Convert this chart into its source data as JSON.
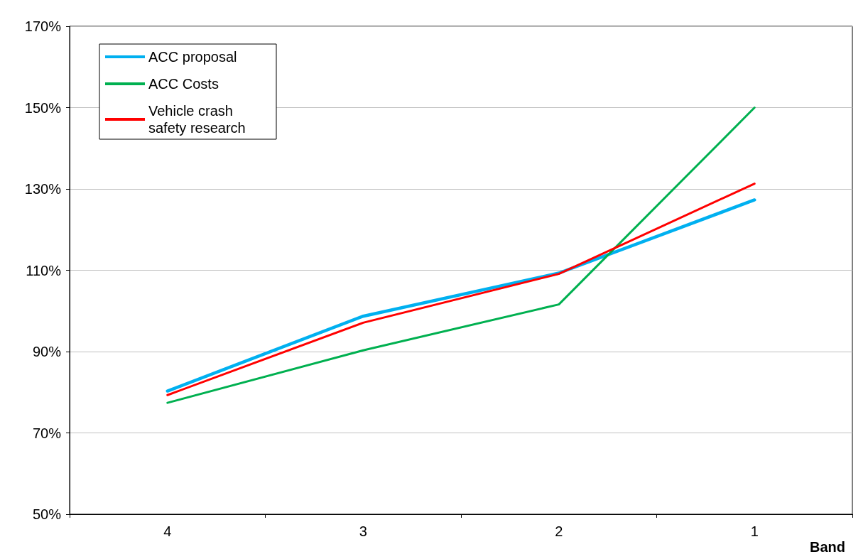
{
  "chart_data": {
    "type": "line",
    "xlabel": "Band",
    "categories": [
      "4",
      "3",
      "2",
      "1"
    ],
    "series": [
      {
        "name": "ACC proposal",
        "color": "#00b0f0",
        "values": [
          80.3,
          98.7,
          109.3,
          127.3
        ]
      },
      {
        "name": "ACC Costs",
        "color": "#00b050",
        "values": [
          77.4,
          90.3,
          101.6,
          150
        ]
      },
      {
        "name": "Vehicle crash safety research",
        "color": "#ff0000",
        "values": [
          79.3,
          97.1,
          109.1,
          131.3
        ]
      }
    ],
    "ylim": [
      50,
      170
    ],
    "yticks": [
      {
        "value": 50,
        "label": "50%"
      },
      {
        "value": 70,
        "label": "70%"
      },
      {
        "value": 90,
        "label": "90%"
      },
      {
        "value": 110,
        "label": "110%"
      },
      {
        "value": 130,
        "label": "130%"
      },
      {
        "value": 150,
        "label": "150%"
      },
      {
        "value": 170,
        "label": "170%"
      }
    ],
    "grid": "y",
    "legend": "top left",
    "marker": "none",
    "line_style": "solid"
  }
}
